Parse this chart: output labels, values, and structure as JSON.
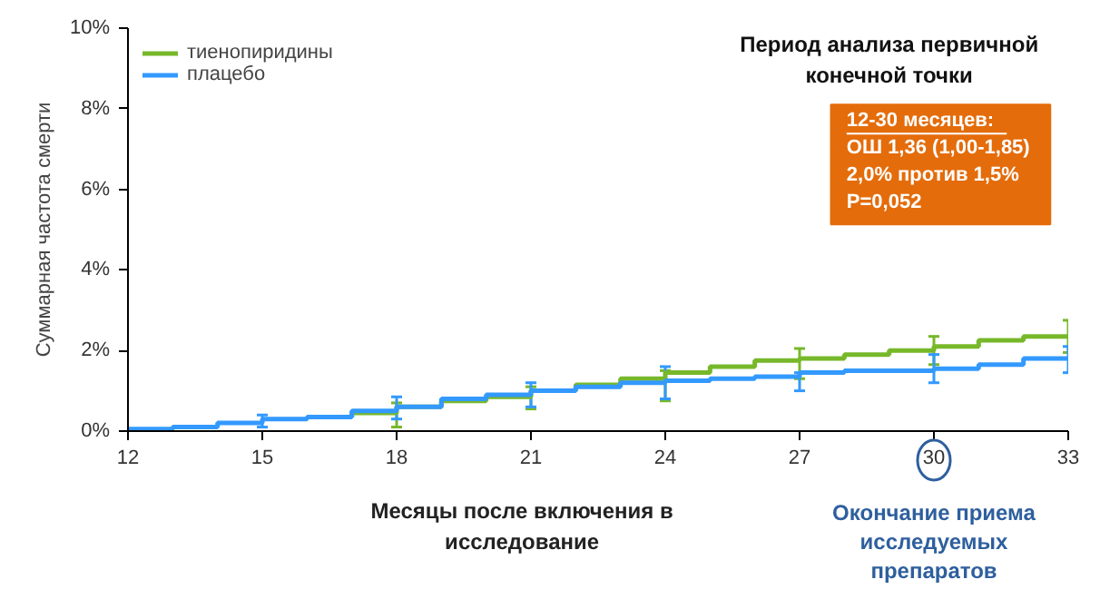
{
  "chart_data": {
    "type": "step",
    "ylabel": "Суммарная частота смерти",
    "xlabel": "Месяцы после включения в\nисследование",
    "xlim": [
      12,
      33
    ],
    "xticks": [
      12,
      15,
      18,
      21,
      24,
      27,
      30,
      33
    ],
    "ylim": [
      0,
      10
    ],
    "yticks": [
      {
        "value": 0,
        "label": "0%"
      },
      {
        "value": 2,
        "label": "2%"
      },
      {
        "value": 4,
        "label": "4%"
      },
      {
        "value": 6,
        "label": "6%"
      },
      {
        "value": 8,
        "label": "8%"
      },
      {
        "value": 10,
        "label": "10%"
      }
    ],
    "grid": false,
    "legend": "top left",
    "series": [
      {
        "name": "тиенопиридины",
        "color": "#77b82a",
        "x": [
          17,
          18,
          19,
          20,
          21,
          22,
          23,
          24,
          25,
          26,
          27,
          28,
          29,
          30,
          31,
          32,
          33
        ],
        "values": [
          0.35,
          0.45,
          0.6,
          0.75,
          0.85,
          1.0,
          1.15,
          1.3,
          1.45,
          1.6,
          1.75,
          1.8,
          1.9,
          2.0,
          2.1,
          2.25,
          2.35
        ],
        "errors": [
          null,
          [
            0.1,
            0.7
          ],
          null,
          null,
          [
            0.55,
            1.1
          ],
          null,
          null,
          [
            0.75,
            1.5
          ],
          null,
          null,
          [
            1.3,
            2.05
          ],
          null,
          null,
          [
            1.65,
            2.35
          ],
          null,
          null,
          [
            1.95,
            2.75
          ]
        ]
      },
      {
        "name": "плацебо",
        "color": "#3399ff",
        "x": [
          12,
          13,
          14,
          15,
          16,
          17,
          18,
          19,
          20,
          21,
          22,
          23,
          24,
          25,
          26,
          27,
          28,
          29,
          30,
          31,
          32,
          33
        ],
        "values": [
          0,
          0.05,
          0.1,
          0.2,
          0.3,
          0.35,
          0.5,
          0.6,
          0.8,
          0.9,
          1.0,
          1.1,
          1.2,
          1.25,
          1.3,
          1.35,
          1.45,
          1.5,
          1.5,
          1.55,
          1.65,
          1.8
        ],
        "errors": [
          null,
          null,
          null,
          [
            0.1,
            0.4
          ],
          null,
          null,
          [
            0.3,
            0.85
          ],
          null,
          null,
          [
            0.6,
            1.2
          ],
          null,
          null,
          [
            0.8,
            1.6
          ],
          null,
          null,
          [
            1.0,
            1.45
          ],
          null,
          null,
          [
            1.2,
            1.9
          ],
          null,
          null,
          [
            1.45,
            2.1
          ]
        ]
      }
    ],
    "annotations": [
      "Период анализа первичной\nконечной точки",
      "12-30 месяцев:\nОШ 1,36 (1,00-1,85)\n2,0% против 1,5%\nP=0,052",
      "Окончание приема\nисследуемых\nпрепаратов"
    ]
  }
}
